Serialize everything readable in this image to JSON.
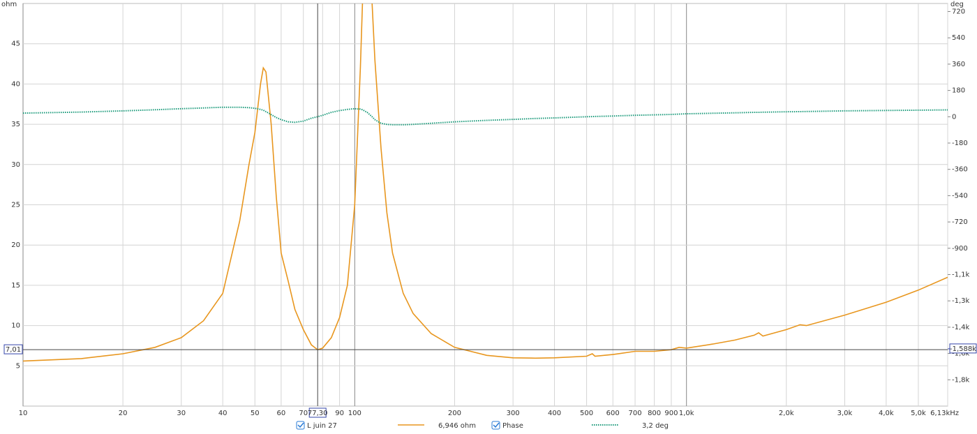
{
  "chart_data": {
    "type": "line",
    "y_unit": "ohm",
    "y2_unit": "deg",
    "xscale": "log",
    "grid": true,
    "xlim": [
      10,
      6130
    ],
    "ylim": [
      0,
      50
    ],
    "y2lim": [
      -1980,
      775
    ],
    "xticks": [
      10,
      20,
      30,
      40,
      50,
      60,
      70,
      80,
      90,
      100,
      200,
      300,
      400,
      500,
      600,
      700,
      800,
      900,
      {
        "value": 1000,
        "label": "1,0k"
      },
      {
        "value": 2000,
        "label": "2,0k"
      },
      {
        "value": 3000,
        "label": "3,0k"
      },
      {
        "value": 4000,
        "label": "4,0k"
      },
      {
        "value": 5000,
        "label": "5,0k"
      },
      {
        "value": 6130,
        "label": "6,13kHz"
      }
    ],
    "yticks": [
      5,
      10,
      15,
      20,
      25,
      30,
      35,
      40,
      45
    ],
    "y2ticks": [
      720,
      540,
      360,
      180,
      0,
      -180,
      -360,
      -540,
      -720,
      -900,
      {
        "value": -1080,
        "label": "-1,1k"
      },
      {
        "value": -1260,
        "label": "-1,3k"
      },
      {
        "value": -1440,
        "label": "-1,4k"
      },
      {
        "value": -1620,
        "label": "-1,6k"
      },
      {
        "value": -1800,
        "label": "-1,8k"
      }
    ],
    "cursor": {
      "x": {
        "value": 77.3,
        "label": "77,30"
      },
      "y": {
        "value": 7.01,
        "label": "7,01"
      },
      "y2": {
        "value": -1588,
        "label": "-1,588k"
      }
    },
    "x": [
      10,
      15,
      20,
      25,
      30,
      35,
      40,
      45,
      48,
      50,
      52,
      53,
      54,
      56,
      58,
      60,
      63,
      66,
      70,
      74,
      77.3,
      80,
      85,
      90,
      95,
      100,
      104,
      105.5,
      109,
      112.8,
      115,
      120,
      125,
      130,
      140,
      150,
      170,
      200,
      250,
      300,
      350,
      400,
      500,
      520,
      530,
      600,
      700,
      800,
      900,
      950,
      1000,
      1200,
      1400,
      1600,
      1650,
      1700,
      2000,
      2200,
      2300,
      3000,
      4000,
      5000,
      6130
    ],
    "series": [
      {
        "name": "L juin 27",
        "color": "#e8961e",
        "axis": "y",
        "style": "solid",
        "readout": "6,946 ohm",
        "values": [
          5.6,
          5.9,
          6.5,
          7.3,
          8.5,
          10.6,
          14,
          23,
          30,
          34,
          40,
          42,
          41.5,
          35,
          26,
          19,
          15.5,
          12,
          9.5,
          7.6,
          7.0,
          7.2,
          8.5,
          11,
          15,
          25,
          42,
          50,
          null,
          50,
          43,
          32,
          24,
          19,
          14,
          11.5,
          9,
          7.3,
          6.3,
          6.0,
          5.95,
          6.0,
          6.2,
          6.5,
          6.2,
          6.4,
          6.8,
          6.8,
          7.0,
          7.3,
          7.2,
          7.7,
          8.2,
          8.8,
          9.1,
          8.7,
          9.5,
          10.1,
          10.0,
          11.3,
          12.9,
          14.4,
          16.0
        ]
      },
      {
        "name": "Phase",
        "color": "#1a9a7a",
        "axis": "y2",
        "style": "dotted",
        "readout": "3,2 deg",
        "values": [
          25,
          32,
          40,
          48,
          55,
          60,
          65,
          65,
          62,
          58,
          50,
          45,
          35,
          15,
          -5,
          -20,
          -35,
          -38,
          -30,
          -10,
          0,
          10,
          30,
          42,
          50,
          55,
          52,
          48,
          30,
          0,
          -20,
          -45,
          -52,
          -55,
          -55,
          -52,
          -45,
          -35,
          -25,
          -18,
          -12,
          -8,
          0,
          1,
          2,
          5,
          10,
          13,
          16,
          18,
          20,
          24,
          27,
          30,
          30,
          31,
          34,
          35,
          36,
          40,
          43,
          45,
          47
        ]
      }
    ]
  }
}
